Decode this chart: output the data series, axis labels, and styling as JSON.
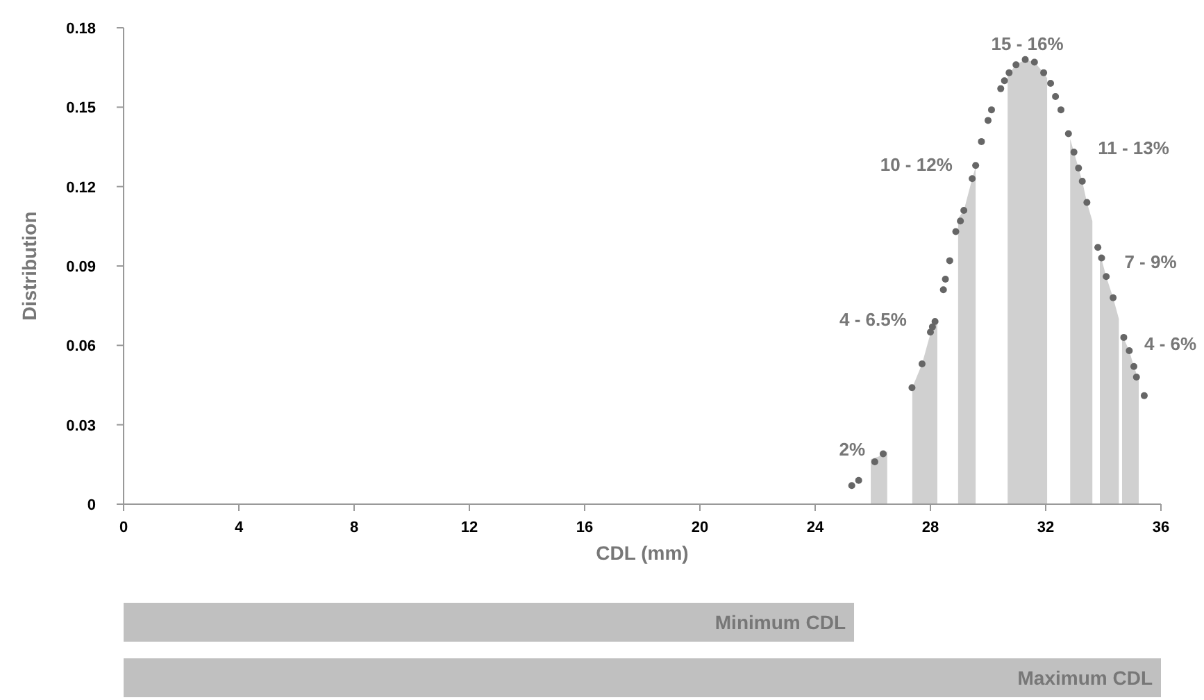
{
  "chart_data": [
    {
      "type": "area",
      "xlabel": "CDL (mm)",
      "ylabel": "Distribution",
      "xlim": [
        0,
        36
      ],
      "xticks": [
        0,
        4,
        8,
        12,
        16,
        20,
        24,
        28,
        32,
        36
      ],
      "ylim": [
        0,
        0.18
      ],
      "yticks": [
        0,
        0.03,
        0.06,
        0.09,
        0.12,
        0.15,
        0.18
      ],
      "grid": false,
      "series": [
        {
          "type": "area",
          "color": "#d0d0d0",
          "x": [
            25.93,
            26.2,
            26.5
          ],
          "values": [
            0.017,
            0.018,
            0.02
          ]
        },
        {
          "type": "area",
          "color": "#d0d0d0",
          "x": [
            27.37,
            27.71,
            28.0,
            28.24
          ],
          "values": [
            0.044,
            0.053,
            0.0645,
            0.069
          ]
        },
        {
          "type": "area",
          "color": "#d0d0d0",
          "x": [
            28.96,
            29.16,
            29.45,
            29.57
          ],
          "values": [
            0.108,
            0.111,
            0.123,
            0.1275
          ]
        },
        {
          "type": "area",
          "color": "#d0d0d0",
          "x": [
            30.68,
            30.97,
            31.29,
            31.61,
            31.93,
            32.05
          ],
          "values": [
            0.162,
            0.166,
            0.168,
            0.167,
            0.163,
            0.161
          ]
        },
        {
          "type": "area",
          "color": "#d0d0d0",
          "x": [
            32.85,
            32.98,
            33.14,
            33.27,
            33.43,
            33.62
          ],
          "values": [
            0.138,
            0.133,
            0.127,
            0.122,
            0.114,
            0.107
          ]
        },
        {
          "type": "area",
          "color": "#d0d0d0",
          "x": [
            33.88,
            34.1,
            34.34,
            34.54
          ],
          "values": [
            0.095,
            0.086,
            0.078,
            0.07
          ]
        },
        {
          "type": "area",
          "color": "#d0d0d0",
          "x": [
            34.65,
            34.9,
            35.06,
            35.23
          ],
          "values": [
            0.064,
            0.058,
            0.052,
            0.047
          ]
        },
        {
          "type": "scatter",
          "color": "#666666",
          "marker": "circle",
          "x": [
            25.27,
            25.51,
            26.07,
            26.36,
            27.36,
            27.71,
            28.0,
            28.07,
            28.16,
            28.45,
            28.52,
            28.67,
            28.88,
            29.04,
            29.16,
            29.45,
            29.57,
            29.77,
            30.0,
            30.12,
            30.44,
            30.57,
            30.73,
            30.97,
            31.29,
            31.61,
            31.93,
            32.17,
            32.34,
            32.53,
            32.79,
            32.98,
            33.14,
            33.27,
            33.43,
            33.81,
            33.94,
            34.1,
            34.34,
            34.71,
            34.9,
            35.06,
            35.15,
            35.42
          ],
          "values": [
            0.007,
            0.009,
            0.016,
            0.019,
            0.044,
            0.053,
            0.065,
            0.067,
            0.069,
            0.081,
            0.085,
            0.092,
            0.103,
            0.107,
            0.111,
            0.123,
            0.128,
            0.137,
            0.145,
            0.149,
            0.157,
            0.16,
            0.163,
            0.166,
            0.168,
            0.167,
            0.163,
            0.159,
            0.154,
            0.149,
            0.14,
            0.133,
            0.127,
            0.122,
            0.114,
            0.097,
            0.093,
            0.086,
            0.078,
            0.063,
            0.058,
            0.052,
            0.048,
            0.041
          ]
        }
      ],
      "annotations": [
        "2%",
        "4 - 6.5%",
        "10 - 12%",
        "15 - 16%",
        "11 - 13%",
        "7 - 9%",
        "4 - 6%"
      ]
    },
    {
      "type": "bar",
      "orientation": "horizontal",
      "categories": [
        "Minimum CDL",
        "Maximum CDL"
      ],
      "values": [
        25.35,
        36
      ],
      "color": "#c0c0c0",
      "xlim": [
        0,
        36
      ],
      "tick_labels": false
    }
  ]
}
